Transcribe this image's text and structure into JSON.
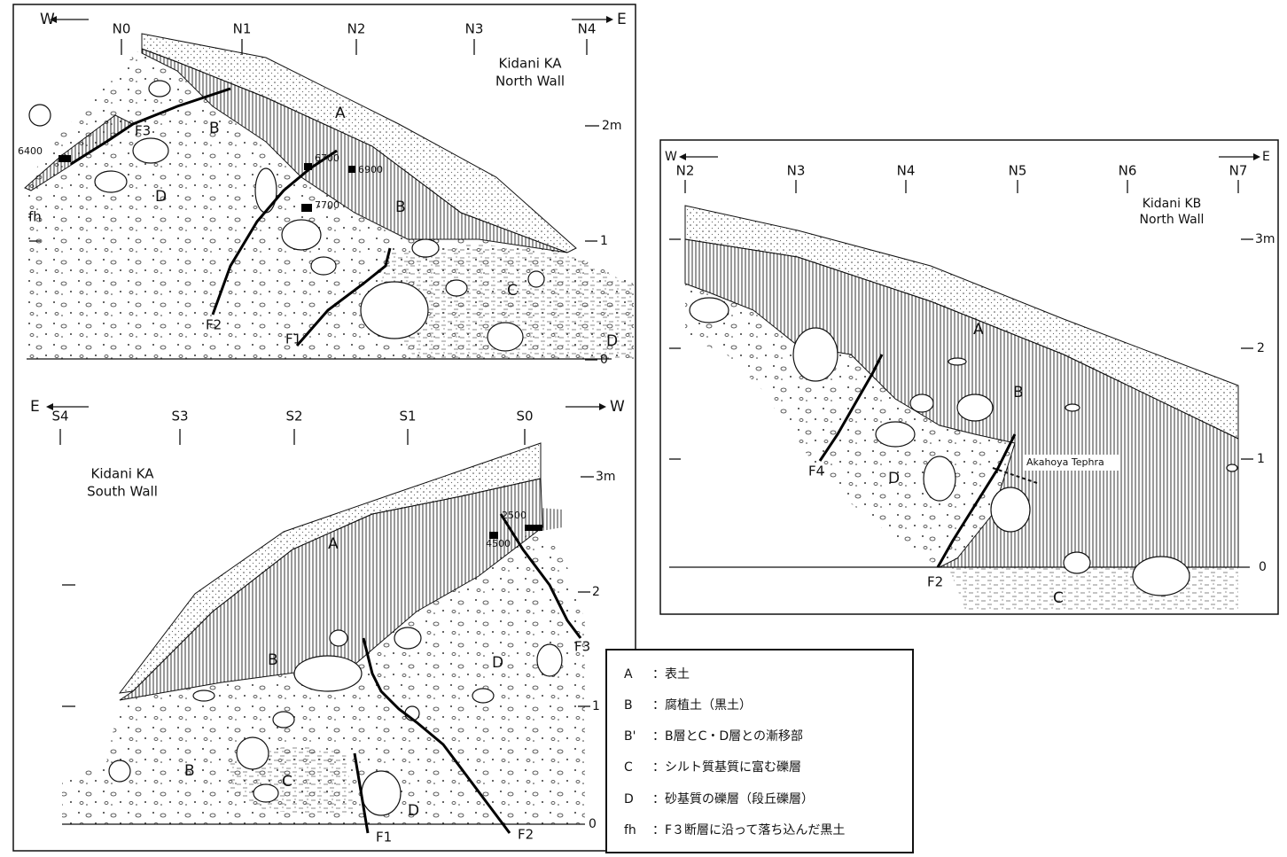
{
  "panels": [
    {
      "title": "Kidani KA",
      "subtitle": "North Wall",
      "dir_left": "W",
      "dir_right": "E",
      "stations": [
        "N0",
        "N1",
        "N2",
        "N3",
        "N4"
      ],
      "depth_labels": [
        "2m",
        "1",
        "0"
      ],
      "units": [
        "A",
        "B",
        "B",
        "C",
        "D",
        "D"
      ],
      "faults": [
        "F1",
        "F2",
        "F3"
      ],
      "samples": [
        "6400",
        "6700",
        "6900",
        "7700"
      ],
      "other": [
        "fh"
      ]
    },
    {
      "title": "Kidani KA",
      "subtitle": "South Wall",
      "dir_left": "E",
      "dir_right": "W",
      "stations": [
        "S4",
        "S3",
        "S2",
        "S1",
        "S0"
      ],
      "depth_labels": [
        "3m",
        "2",
        "1",
        "0"
      ],
      "units": [
        "A",
        "B",
        "B",
        "C",
        "D",
        "D"
      ],
      "faults": [
        "F1",
        "F2",
        "F3"
      ],
      "samples": [
        "2500",
        "4500"
      ]
    },
    {
      "title": "Kidani KB",
      "subtitle": "North Wall",
      "dir_left": "W",
      "dir_right": "E",
      "stations": [
        "N2",
        "N3",
        "N4",
        "N5",
        "N6",
        "N7"
      ],
      "depth_labels": [
        "3m",
        "2",
        "1",
        "0"
      ],
      "units": [
        "A",
        "B",
        "C",
        "D"
      ],
      "faults": [
        "F2",
        "F4"
      ],
      "tephra": "Akahoya Tephra"
    }
  ],
  "legend": [
    {
      "key": "A",
      "text": "：表土"
    },
    {
      "key": "B",
      "text": "：腐植土（黒土）"
    },
    {
      "key": "B'",
      "text": "：B層とC・D層との漸移部"
    },
    {
      "key": "C",
      "text": "：シルト質基質に富む礫層"
    },
    {
      "key": "D",
      "text": "：砂基質の礫層（段丘礫層）"
    },
    {
      "key": "fh",
      "text": "：F３断層に沿って落ち込んだ黒土"
    }
  ]
}
